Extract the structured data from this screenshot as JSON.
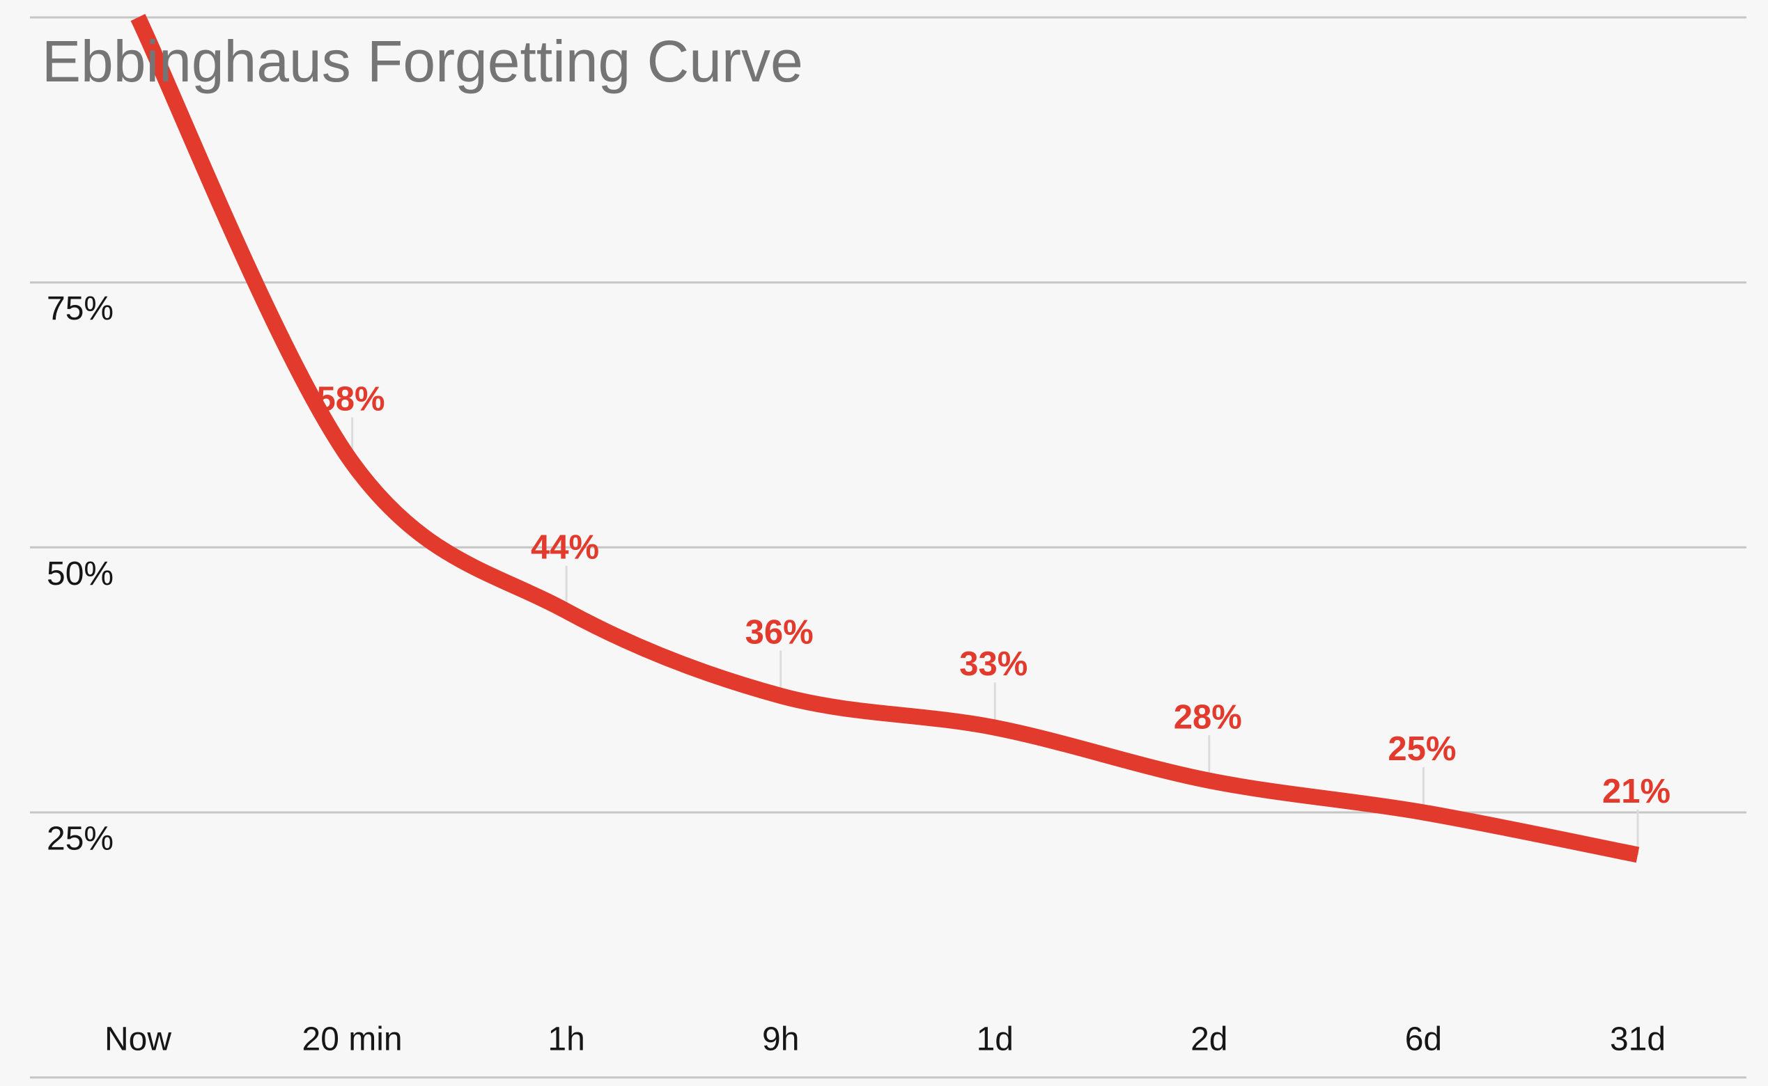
{
  "title": "Ebbinghaus Forgetting Curve",
  "chart_data": {
    "type": "line",
    "title": "Ebbinghaus Forgetting Curve",
    "categories": [
      "Now",
      "20 min",
      "1h",
      "9h",
      "1d",
      "2d",
      "6d",
      "31d"
    ],
    "values": [
      100,
      58,
      44,
      36,
      33,
      28,
      25,
      21
    ],
    "point_labels": [
      "",
      "58%",
      "44%",
      "36%",
      "33%",
      "28%",
      "25%",
      "21%"
    ],
    "xlabel": "",
    "ylabel": "",
    "ylim": [
      0,
      100
    ],
    "yticks": [
      {
        "value": 75,
        "label": "75%"
      },
      {
        "value": 50,
        "label": "50%"
      },
      {
        "value": 25,
        "label": "25%"
      }
    ],
    "gridline_values": [
      100,
      75,
      50,
      25,
      0
    ],
    "grid": "horizontal-only",
    "legend": "none",
    "line_color": "#e23a2c",
    "label_color": "#e23a2c"
  },
  "colors": {
    "background": "#f7f7f7",
    "gridline": "#c6c6c6",
    "leader_line": "#dcdcdc",
    "title_text": "#757575",
    "axis_text": "#161616",
    "curve_red": "#e23a2c"
  }
}
